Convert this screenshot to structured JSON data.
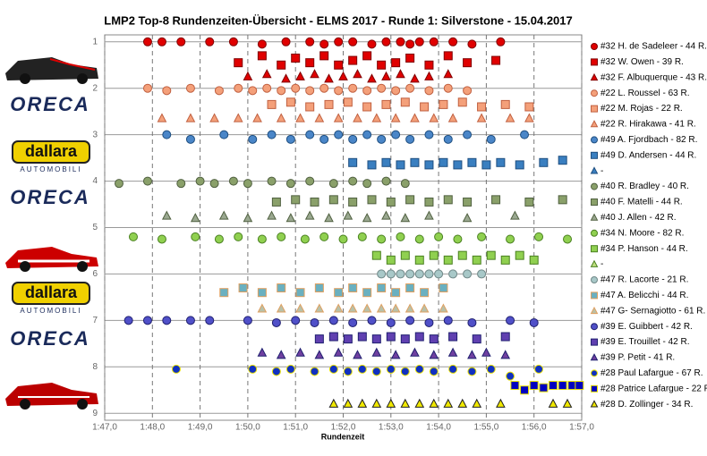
{
  "chart_data": {
    "type": "scatter",
    "title": "LMP2 Top-8 Rundenzeiten-Übersicht - ELMS 2017  - Runde 1:  Silverstone - 15.04.2017",
    "x_label": "Rundenzeit",
    "xlim": [
      107,
      117
    ],
    "ylim": [
      0.85,
      9.15
    ],
    "y_inverted": true,
    "grid": true,
    "legend_position": "right",
    "xticks": [
      {
        "value": 107,
        "label": "1:47,0"
      },
      {
        "value": 108,
        "label": "1:48,0"
      },
      {
        "value": 109,
        "label": "1:49,0"
      },
      {
        "value": 110,
        "label": "1:50,0"
      },
      {
        "value": 111,
        "label": "1:51,0"
      },
      {
        "value": 112,
        "label": "1:52,0"
      },
      {
        "value": 113,
        "label": "1:53,0"
      },
      {
        "value": 114,
        "label": "1:54,0"
      },
      {
        "value": 115,
        "label": "1:55,0"
      },
      {
        "value": 116,
        "label": "1:56,0"
      },
      {
        "value": 117,
        "label": "1:57,0"
      }
    ],
    "yticks": [
      1,
      2,
      3,
      4,
      5,
      6,
      7,
      8,
      9
    ],
    "logos": [
      "ORECA",
      "dallara",
      "AUTOMOBILI",
      "ORECA",
      "dallara",
      "AUTOMOBILI",
      "ORECA"
    ],
    "series": [
      {
        "name": "#32 H. de Sadeleer - 44 R.",
        "marker": "circle",
        "color": "#e00000",
        "edge": "#800000",
        "x": [
          107.9,
          108.2,
          108.6,
          109.2,
          109.7,
          110.3,
          110.8,
          111.3,
          111.6,
          111.9,
          112.2,
          112.6,
          112.9,
          113.2,
          113.4,
          113.6,
          113.9,
          114.3,
          114.7,
          115.3
        ],
        "y": [
          1,
          1,
          1,
          1,
          1,
          1.05,
          1,
          1,
          1.05,
          1,
          1,
          1.05,
          1,
          1,
          1.05,
          1,
          1,
          1,
          1.05,
          1
        ]
      },
      {
        "name": "#32 W. Owen - 39 R.",
        "marker": "square",
        "color": "#e00000",
        "edge": "#800000",
        "x": [
          109.8,
          110.3,
          110.7,
          111.0,
          111.3,
          111.6,
          111.9,
          112.2,
          112.5,
          112.8,
          113.1,
          113.4,
          113.8,
          114.2,
          114.6,
          115.2
        ],
        "y": [
          1.45,
          1.3,
          1.5,
          1.35,
          1.45,
          1.3,
          1.5,
          1.4,
          1.3,
          1.5,
          1.45,
          1.35,
          1.5,
          1.3,
          1.45,
          1.4
        ]
      },
      {
        "name": "#32 F. Albuquerque - 43 R.",
        "marker": "triangle",
        "color": "#e00000",
        "edge": "#800000",
        "x": [
          110.0,
          110.4,
          110.8,
          111.1,
          111.4,
          111.7,
          112.0,
          112.3,
          112.6,
          112.9,
          113.2,
          113.5,
          113.8,
          114.2
        ],
        "y": [
          1.75,
          1.7,
          1.8,
          1.75,
          1.7,
          1.8,
          1.75,
          1.7,
          1.8,
          1.75,
          1.7,
          1.8,
          1.75,
          1.7
        ]
      },
      {
        "name": "#22 L. Roussel - 63 R.",
        "marker": "circle",
        "color": "#f4a07a",
        "edge": "#c06040",
        "x": [
          107.9,
          108.3,
          108.8,
          109.4,
          109.8,
          110.1,
          110.4,
          110.7,
          111.0,
          111.3,
          111.6,
          111.9,
          112.2,
          112.5,
          112.8,
          113.1,
          113.4,
          113.8,
          114.2,
          114.6
        ],
        "y": [
          2,
          2.05,
          2,
          2.05,
          2,
          2.05,
          2,
          2.05,
          2,
          2.05,
          2,
          2.05,
          2,
          2.05,
          2,
          2.05,
          2,
          2.05,
          2,
          2.05
        ]
      },
      {
        "name": "#22 M. Rojas - 22 R.",
        "marker": "square",
        "color": "#f4a07a",
        "edge": "#c06040",
        "x": [
          110.5,
          110.9,
          111.3,
          111.7,
          112.1,
          112.5,
          112.9,
          113.3,
          113.7,
          114.1,
          114.5,
          114.9,
          115.4,
          115.9
        ],
        "y": [
          2.35,
          2.3,
          2.4,
          2.35,
          2.3,
          2.4,
          2.35,
          2.3,
          2.4,
          2.35,
          2.3,
          2.4,
          2.35,
          2.4
        ]
      },
      {
        "name": "#22 R. Hirakawa - 41 R.",
        "marker": "triangle",
        "color": "#f4a07a",
        "edge": "#c06040",
        "x": [
          108.2,
          108.8,
          109.3,
          109.8,
          110.2,
          110.7,
          111.1,
          111.5,
          111.9,
          112.3,
          112.7,
          113.1,
          113.5,
          113.9,
          114.3,
          114.9,
          115.5,
          115.9
        ],
        "y": [
          2.65,
          2.65,
          2.65,
          2.65,
          2.65,
          2.65,
          2.65,
          2.65,
          2.65,
          2.65,
          2.65,
          2.65,
          2.65,
          2.65,
          2.65,
          2.65,
          2.65,
          2.65
        ]
      },
      {
        "name": "#49 A. Fjordbach - 82 R.",
        "marker": "circle",
        "color": "#4a86c8",
        "edge": "#1f4f80",
        "x": [
          108.3,
          108.8,
          109.5,
          110.1,
          110.5,
          110.9,
          111.3,
          111.6,
          111.9,
          112.2,
          112.5,
          112.8,
          113.1,
          113.4,
          113.8,
          114.2,
          114.6,
          115.1,
          115.8
        ],
        "y": [
          3,
          3.1,
          3,
          3.1,
          3,
          3.1,
          3,
          3.1,
          3,
          3.1,
          3,
          3.1,
          3,
          3.1,
          3,
          3.1,
          3,
          3.1,
          3
        ]
      },
      {
        "name": "#49 D. Andersen - 44 R.",
        "marker": "square",
        "color": "#3a7fc0",
        "edge": "#1f4f80",
        "x": [
          112.2,
          112.6,
          112.9,
          113.2,
          113.5,
          113.8,
          114.1,
          114.4,
          114.7,
          115.0,
          115.3,
          115.7,
          116.2,
          116.6
        ],
        "y": [
          3.6,
          3.65,
          3.6,
          3.65,
          3.6,
          3.65,
          3.6,
          3.65,
          3.6,
          3.65,
          3.6,
          3.65,
          3.6,
          3.55
        ]
      },
      {
        "name": "-",
        "marker": "triangle",
        "color": "#3a7fc0",
        "edge": "#1f4f80",
        "x": [],
        "y": []
      },
      {
        "name": "#40 R. Bradley - 40 R.",
        "marker": "circle",
        "color": "#8aa06a",
        "edge": "#506040",
        "x": [
          107.3,
          107.9,
          108.6,
          109.0,
          109.3,
          109.7,
          110.0,
          110.5,
          110.9,
          111.3,
          111.8,
          112.2,
          112.5,
          112.9,
          113.3
        ],
        "y": [
          4.05,
          4,
          4.05,
          4,
          4.05,
          4,
          4.05,
          4,
          4.05,
          4,
          4.05,
          4,
          4.05,
          4,
          4.05
        ]
      },
      {
        "name": "#40 F. Matelli - 44 R.",
        "marker": "square",
        "color": "#8aa06a",
        "edge": "#506040",
        "x": [
          110.6,
          111.0,
          111.4,
          111.8,
          112.2,
          112.6,
          113.0,
          113.4,
          113.8,
          114.2,
          114.6,
          115.2,
          115.9,
          116.6
        ],
        "y": [
          4.45,
          4.4,
          4.45,
          4.4,
          4.45,
          4.4,
          4.45,
          4.4,
          4.45,
          4.4,
          4.45,
          4.4,
          4.45,
          4.4
        ]
      },
      {
        "name": "#40 J. Allen - 42 R.",
        "marker": "triangle",
        "color": "#9aa890",
        "edge": "#506040",
        "x": [
          108.3,
          108.9,
          109.5,
          110.0,
          110.5,
          110.9,
          111.3,
          111.7,
          112.1,
          112.5,
          112.9,
          113.3,
          113.8,
          114.6,
          115.6
        ],
        "y": [
          4.75,
          4.8,
          4.75,
          4.8,
          4.75,
          4.8,
          4.75,
          4.8,
          4.75,
          4.8,
          4.75,
          4.8,
          4.75,
          4.8,
          4.75
        ]
      },
      {
        "name": "#34 N. Moore - 82 R.",
        "marker": "circle",
        "color": "#90d050",
        "edge": "#4a8020",
        "x": [
          107.6,
          108.2,
          108.9,
          109.4,
          109.8,
          110.3,
          110.7,
          111.2,
          111.6,
          112.0,
          112.4,
          112.8,
          113.2,
          113.6,
          114.0,
          114.4,
          114.9,
          115.5,
          116.1,
          116.7
        ],
        "y": [
          5.2,
          5.25,
          5.2,
          5.25,
          5.2,
          5.25,
          5.2,
          5.25,
          5.2,
          5.25,
          5.2,
          5.25,
          5.2,
          5.25,
          5.2,
          5.25,
          5.2,
          5.25,
          5.2,
          5.25
        ]
      },
      {
        "name": "#34 P. Hanson - 44 R.",
        "marker": "square",
        "color": "#90d050",
        "edge": "#4a8020",
        "x": [
          112.7,
          113.0,
          113.3,
          113.6,
          113.9,
          114.2,
          114.5,
          114.8,
          115.1,
          115.4,
          115.7,
          116.0
        ],
        "y": [
          5.6,
          5.7,
          5.6,
          5.7,
          5.6,
          5.7,
          5.6,
          5.7,
          5.6,
          5.7,
          5.6,
          5.7
        ]
      },
      {
        "name": "-",
        "marker": "triangle",
        "color": "#c0e080",
        "edge": "#4a8020",
        "x": [],
        "y": []
      },
      {
        "name": "#47 R. Lacorte - 21 R.",
        "marker": "circle",
        "color": "#a8c8c8",
        "edge": "#708888",
        "x": [
          112.8,
          113.0,
          113.2,
          113.4,
          113.6,
          113.8,
          114.0,
          114.3,
          114.6,
          114.9
        ],
        "y": [
          6,
          6,
          6,
          6,
          6,
          6,
          6,
          6,
          6,
          6
        ]
      },
      {
        "name": "#47 A. Belicchi - 44 R.",
        "marker": "square",
        "color": "#6ab0c0",
        "edge": "#e0a060",
        "x": [
          109.5,
          109.9,
          110.3,
          110.7,
          111.1,
          111.5,
          111.9,
          112.2,
          112.5,
          112.8,
          113.1,
          113.4,
          113.7,
          114.1
        ],
        "y": [
          6.4,
          6.3,
          6.4,
          6.3,
          6.4,
          6.3,
          6.4,
          6.3,
          6.4,
          6.3,
          6.4,
          6.3,
          6.4,
          6.3
        ]
      },
      {
        "name": "#47 G- Sernagiotto - 61 R.",
        "marker": "triangle",
        "color": "#b8c0a8",
        "edge": "#e0a060",
        "x": [
          110.3,
          110.7,
          111.1,
          111.5,
          111.9,
          112.2,
          112.5,
          112.8,
          113.1,
          113.4,
          113.7,
          114.1
        ],
        "y": [
          6.75,
          6.75,
          6.75,
          6.75,
          6.75,
          6.75,
          6.75,
          6.75,
          6.75,
          6.75,
          6.75,
          6.75
        ]
      },
      {
        "name": "#39 E. Guibbert - 42 R.",
        "marker": "circle",
        "color": "#5050c8",
        "edge": "#202070",
        "x": [
          107.5,
          107.9,
          108.3,
          108.8,
          109.2,
          110.0,
          110.6,
          111.0,
          111.4,
          111.8,
          112.2,
          112.6,
          113.0,
          113.4,
          113.8,
          114.2,
          114.7,
          115.5,
          116.0
        ],
        "y": [
          7,
          7,
          7,
          7,
          7,
          7,
          7.05,
          7,
          7.05,
          7,
          7.05,
          7,
          7.05,
          7,
          7.05,
          7,
          7.05,
          7,
          7.05
        ]
      },
      {
        "name": "#39 E. Trouillet - 42 R.",
        "marker": "square",
        "color": "#6040b0",
        "edge": "#202070",
        "x": [
          111.5,
          111.8,
          112.1,
          112.4,
          112.7,
          113.0,
          113.3,
          113.6,
          113.9,
          114.3,
          114.8,
          115.4
        ],
        "y": [
          7.4,
          7.35,
          7.4,
          7.35,
          7.4,
          7.35,
          7.4,
          7.35,
          7.4,
          7.35,
          7.4,
          7.35
        ]
      },
      {
        "name": "#39 P. Petit - 41 R.",
        "marker": "triangle",
        "color": "#7040a0",
        "edge": "#202070",
        "x": [
          110.3,
          110.7,
          111.1,
          111.5,
          111.9,
          112.3,
          112.7,
          113.1,
          113.5,
          113.9,
          114.3,
          114.7,
          115.0,
          115.4
        ],
        "y": [
          7.7,
          7.75,
          7.7,
          7.75,
          7.7,
          7.75,
          7.7,
          7.75,
          7.7,
          7.75,
          7.7,
          7.75,
          7.7,
          7.75
        ]
      },
      {
        "name": "#28 Paul Lafargue - 67 R.",
        "marker": "circle",
        "color": "#1030c0",
        "edge": "#e8e000",
        "x": [
          108.5,
          110.1,
          110.6,
          110.9,
          111.4,
          111.8,
          112.1,
          112.4,
          112.7,
          113.0,
          113.3,
          113.6,
          113.9,
          114.3,
          114.7,
          115.1,
          115.5,
          116.1
        ],
        "y": [
          8.05,
          8.05,
          8.1,
          8.05,
          8.1,
          8.05,
          8.1,
          8.05,
          8.1,
          8.05,
          8.1,
          8.05,
          8.1,
          8.05,
          8.1,
          8.05,
          8.2,
          8.05
        ]
      },
      {
        "name": "#28 Patrice Lafargue - 22 R.",
        "marker": "square",
        "color": "#0000c0",
        "edge": "#e8e000",
        "x": [
          115.6,
          115.8,
          116.0,
          116.2,
          116.4,
          116.6,
          116.8,
          116.95
        ],
        "y": [
          8.4,
          8.5,
          8.4,
          8.45,
          8.4,
          8.4,
          8.4,
          8.4
        ]
      },
      {
        "name": "#28 D. Zollinger - 34 R.",
        "marker": "triangle",
        "color": "#f0e800",
        "edge": "#202020",
        "x": [
          111.8,
          112.1,
          112.4,
          112.7,
          113.0,
          113.3,
          113.6,
          113.9,
          114.2,
          114.5,
          114.8,
          115.3,
          116.4,
          116.7
        ],
        "y": [
          8.8,
          8.8,
          8.8,
          8.8,
          8.8,
          8.8,
          8.8,
          8.8,
          8.8,
          8.8,
          8.8,
          8.8,
          8.8,
          8.8
        ]
      }
    ]
  }
}
